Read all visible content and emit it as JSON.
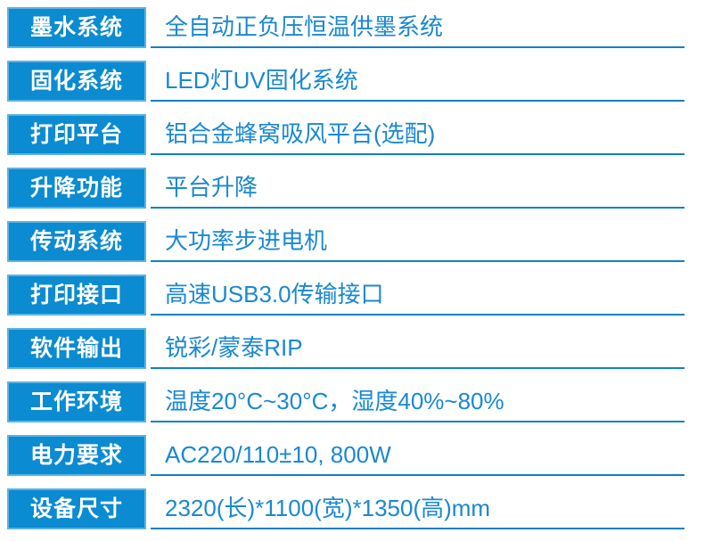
{
  "colors": {
    "label_bg": "#0b8bd1",
    "label_border": "#5eb3e1",
    "label_text": "#ffffff",
    "value_text": "#1a88d2",
    "underline": "#1180c6",
    "page_bg": "#ffffff"
  },
  "spec_table": {
    "rows": [
      {
        "label": "墨水系统",
        "value": "全自动正负压恒温供墨系统"
      },
      {
        "label": "固化系统",
        "value": "LED灯UV固化系统"
      },
      {
        "label": "打印平台",
        "value": "铝合金蜂窝吸风平台(选配)"
      },
      {
        "label": "升降功能",
        "value": "平台升降"
      },
      {
        "label": "传动系统",
        "value": "大功率步进电机"
      },
      {
        "label": "打印接口",
        "value": "高速USB3.0传输接口"
      },
      {
        "label": "软件输出",
        "value": "锐彩/蒙泰RIP"
      },
      {
        "label": "工作环境",
        "value": "温度20°C~30°C，湿度40%~80%"
      },
      {
        "label": "电力要求",
        "value": "AC220/110±10, 800W"
      },
      {
        "label": "设备尺寸",
        "value": "2320(长)*1100(宽)*1350(高)mm"
      }
    ]
  }
}
